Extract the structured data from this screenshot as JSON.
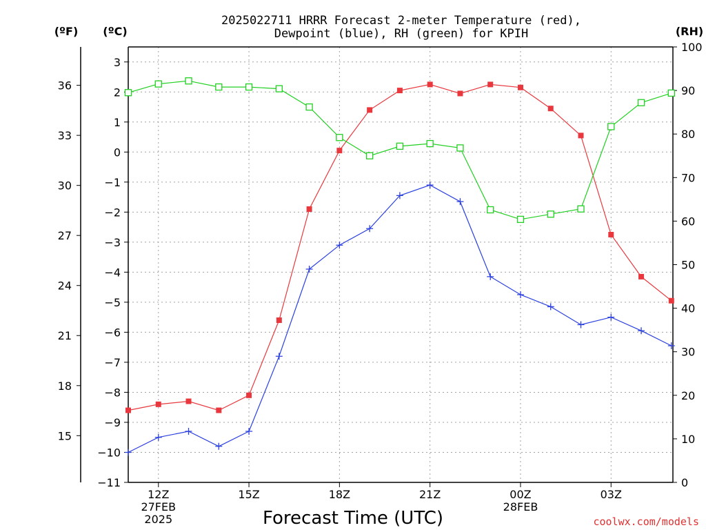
{
  "chart_data": {
    "type": "line",
    "title_line1": "2025022711 HRRR Forecast 2-meter Temperature (red),",
    "title_line2": "Dewpoint (blue), RH (green) for KPIH",
    "xlabel": "Forecast Time (UTC)",
    "left_outer_unit": "(ºF)",
    "left_inner_unit": "(ºC)",
    "right_unit": "(RH)",
    "credit": "coolwx.com/models",
    "colors": {
      "temperature": "#e8383d",
      "dewpoint": "#2a3fe0",
      "rh": "#20d020",
      "grid": "#a0a0a0"
    },
    "ylim_c": [
      -11,
      3.5
    ],
    "ylim_rh": [
      0,
      100
    ],
    "x_hours": [
      11,
      12,
      13,
      14,
      15,
      16,
      17,
      18,
      19,
      20,
      21,
      22,
      23,
      24,
      25,
      26,
      27,
      28,
      29
    ],
    "x_ticks": [
      {
        "hour": 12,
        "line1": "12Z",
        "line2": "27FEB",
        "line3": "2025"
      },
      {
        "hour": 15,
        "line1": "15Z",
        "line2": "",
        "line3": ""
      },
      {
        "hour": 18,
        "line1": "18Z",
        "line2": "",
        "line3": ""
      },
      {
        "hour": 21,
        "line1": "21Z",
        "line2": "",
        "line3": ""
      },
      {
        "hour": 24,
        "line1": "00Z",
        "line2": "28FEB",
        "line3": ""
      },
      {
        "hour": 27,
        "line1": "03Z",
        "line2": "",
        "line3": ""
      }
    ],
    "c_ticks": [
      3,
      2,
      1,
      0,
      -1,
      -2,
      -3,
      -4,
      -5,
      -6,
      -7,
      -8,
      -9,
      -10,
      -11
    ],
    "c_tick_labels": [
      "3",
      "2",
      "1",
      "0",
      "−1",
      "−2",
      "−3",
      "−4",
      "−5",
      "−6",
      "−7",
      "−8",
      "−9",
      "−10",
      "−11"
    ],
    "f_ticks": [
      36,
      33,
      30,
      27,
      24,
      21,
      18,
      15
    ],
    "rh_ticks": [
      100,
      90,
      80,
      70,
      60,
      50,
      40,
      30,
      20,
      10,
      0
    ],
    "series": [
      {
        "key": "temperature",
        "marker": "square-filled",
        "values": [
          -8.6,
          -8.4,
          -8.3,
          -8.6,
          -8.1,
          -5.6,
          -1.9,
          0.05,
          1.4,
          2.05,
          2.25,
          1.95,
          2.25,
          2.15,
          1.45,
          0.55,
          -2.75,
          -4.15,
          -4.95
        ]
      },
      {
        "key": "dewpoint",
        "marker": "plus",
        "values": [
          -10.0,
          -9.5,
          -9.3,
          -9.8,
          -9.3,
          -6.8,
          -3.9,
          -3.1,
          -2.55,
          -1.45,
          -1.1,
          -1.65,
          -4.15,
          -4.75,
          -5.15,
          -5.75,
          -5.5,
          -5.95,
          -6.45
        ]
      },
      {
        "key": "rh",
        "marker": "square-open",
        "values": [
          89.5,
          91.5,
          92.2,
          90.8,
          90.8,
          90.4,
          86.2,
          79.2,
          75.0,
          77.2,
          77.8,
          76.8,
          62.6,
          60.4,
          61.6,
          62.8,
          81.7,
          87.2,
          89.4
        ]
      }
    ]
  }
}
